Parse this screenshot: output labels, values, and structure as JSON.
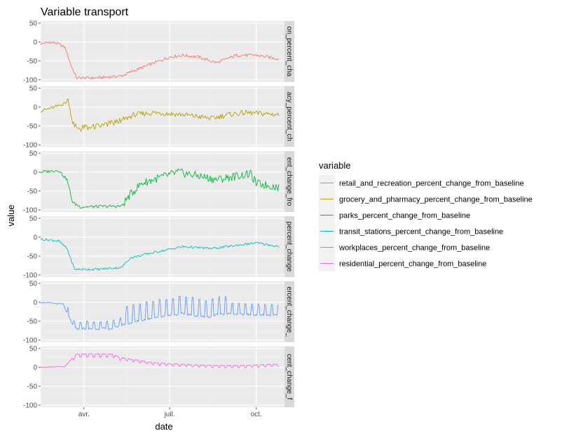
{
  "chart_data": {
    "type": "line",
    "title": "Variable transport",
    "xlabel": "date",
    "ylabel": "value",
    "ylim": [
      -100,
      50
    ],
    "y_ticks": [
      50,
      0,
      -50,
      -100
    ],
    "y_tick_labels": [
      "50",
      "0",
      "-50",
      "-100"
    ],
    "x_range": [
      "2020-02-15",
      "2020-10-31"
    ],
    "x_ticks": [
      {
        "date": "2020-04-01",
        "label": "avr."
      },
      {
        "date": "2020-07-01",
        "label": "juil."
      },
      {
        "date": "2020-10-01",
        "label": "oct."
      }
    ],
    "facets": "stacked-rows",
    "grid": true,
    "legend": {
      "title": "variable",
      "placement": "right"
    },
    "series": [
      {
        "name": "retail_and_recreation_percent_change_from_baseline",
        "strip_label": "on_percent_cha",
        "color": "#F8766D",
        "profile": "retail",
        "keypoints": [
          [
            "2020-02-15",
            -5
          ],
          [
            "2020-02-25",
            0
          ],
          [
            "2020-03-05",
            -5
          ],
          [
            "2020-03-12",
            -15
          ],
          [
            "2020-03-18",
            -60
          ],
          [
            "2020-03-24",
            -95
          ],
          [
            "2020-04-15",
            -95
          ],
          [
            "2020-05-11",
            -90
          ],
          [
            "2020-05-25",
            -75
          ],
          [
            "2020-06-15",
            -55
          ],
          [
            "2020-07-01",
            -40
          ],
          [
            "2020-07-15",
            -35
          ],
          [
            "2020-08-01",
            -40
          ],
          [
            "2020-08-20",
            -55
          ],
          [
            "2020-09-10",
            -35
          ],
          [
            "2020-10-01",
            -35
          ],
          [
            "2020-10-25",
            -45
          ]
        ]
      },
      {
        "name": "grocery_and_pharmacy_percent_change_from_baseline",
        "strip_label": "acy_percent_ch",
        "color": "#B79F00",
        "profile": "grocery",
        "keypoints": [
          [
            "2020-02-15",
            -10
          ],
          [
            "2020-03-01",
            0
          ],
          [
            "2020-03-12",
            10
          ],
          [
            "2020-03-15",
            20
          ],
          [
            "2020-03-20",
            -40
          ],
          [
            "2020-03-25",
            -55
          ],
          [
            "2020-04-15",
            -50
          ],
          [
            "2020-05-11",
            -35
          ],
          [
            "2020-05-25",
            -20
          ],
          [
            "2020-06-15",
            -15
          ],
          [
            "2020-07-15",
            -20
          ],
          [
            "2020-08-15",
            -30
          ],
          [
            "2020-09-01",
            -20
          ],
          [
            "2020-09-20",
            -15
          ],
          [
            "2020-10-25",
            -20
          ]
        ]
      },
      {
        "name": "parks_percent_change_from_baseline",
        "strip_label": "ent_change_fro",
        "color": "#00BA38",
        "profile": "parks",
        "keypoints": [
          [
            "2020-02-15",
            0
          ],
          [
            "2020-03-05",
            5
          ],
          [
            "2020-03-14",
            -20
          ],
          [
            "2020-03-20",
            -80
          ],
          [
            "2020-03-28",
            -92
          ],
          [
            "2020-05-11",
            -90
          ],
          [
            "2020-05-20",
            -60
          ],
          [
            "2020-06-01",
            -30
          ],
          [
            "2020-06-20",
            -15
          ],
          [
            "2020-07-10",
            0
          ],
          [
            "2020-08-01",
            -10
          ],
          [
            "2020-08-20",
            -20
          ],
          [
            "2020-09-10",
            -10
          ],
          [
            "2020-09-25",
            -5
          ],
          [
            "2020-10-01",
            -30
          ],
          [
            "2020-10-25",
            -40
          ]
        ]
      },
      {
        "name": "transit_stations_percent_change_from_baseline",
        "strip_label": "percent_change",
        "color": "#00BFC4",
        "profile": "transit",
        "keypoints": [
          [
            "2020-02-15",
            -5
          ],
          [
            "2020-03-05",
            -10
          ],
          [
            "2020-03-14",
            -30
          ],
          [
            "2020-03-22",
            -85
          ],
          [
            "2020-04-15",
            -85
          ],
          [
            "2020-05-11",
            -80
          ],
          [
            "2020-05-20",
            -55
          ],
          [
            "2020-06-15",
            -40
          ],
          [
            "2020-07-15",
            -25
          ],
          [
            "2020-08-15",
            -30
          ],
          [
            "2020-09-15",
            -20
          ],
          [
            "2020-10-01",
            -15
          ],
          [
            "2020-10-25",
            -25
          ]
        ]
      },
      {
        "name": "workplaces_percent_change_from_baseline",
        "strip_label": "ercent_change_",
        "color": "#619CFF",
        "profile": "workplaces",
        "keypoints": [
          [
            "2020-02-15",
            0
          ],
          [
            "2020-03-10",
            -5
          ],
          [
            "2020-03-16",
            -40
          ],
          [
            "2020-03-22",
            -70
          ],
          [
            "2020-04-30",
            -70
          ],
          [
            "2020-05-11",
            -60
          ],
          [
            "2020-06-15",
            -40
          ],
          [
            "2020-07-15",
            -30
          ],
          [
            "2020-08-10",
            -40
          ],
          [
            "2020-08-25",
            -30
          ],
          [
            "2020-10-25",
            -35
          ]
        ]
      },
      {
        "name": "residential_percent_change_from_baseline",
        "strip_label": "cent_change_f",
        "color": "#F564E3",
        "profile": "residential",
        "keypoints": [
          [
            "2020-02-15",
            0
          ],
          [
            "2020-03-12",
            2
          ],
          [
            "2020-03-18",
            20
          ],
          [
            "2020-03-24",
            35
          ],
          [
            "2020-05-01",
            35
          ],
          [
            "2020-05-11",
            25
          ],
          [
            "2020-06-15",
            12
          ],
          [
            "2020-07-15",
            8
          ],
          [
            "2020-08-15",
            5
          ],
          [
            "2020-09-15",
            5
          ],
          [
            "2020-10-25",
            8
          ]
        ]
      }
    ]
  }
}
